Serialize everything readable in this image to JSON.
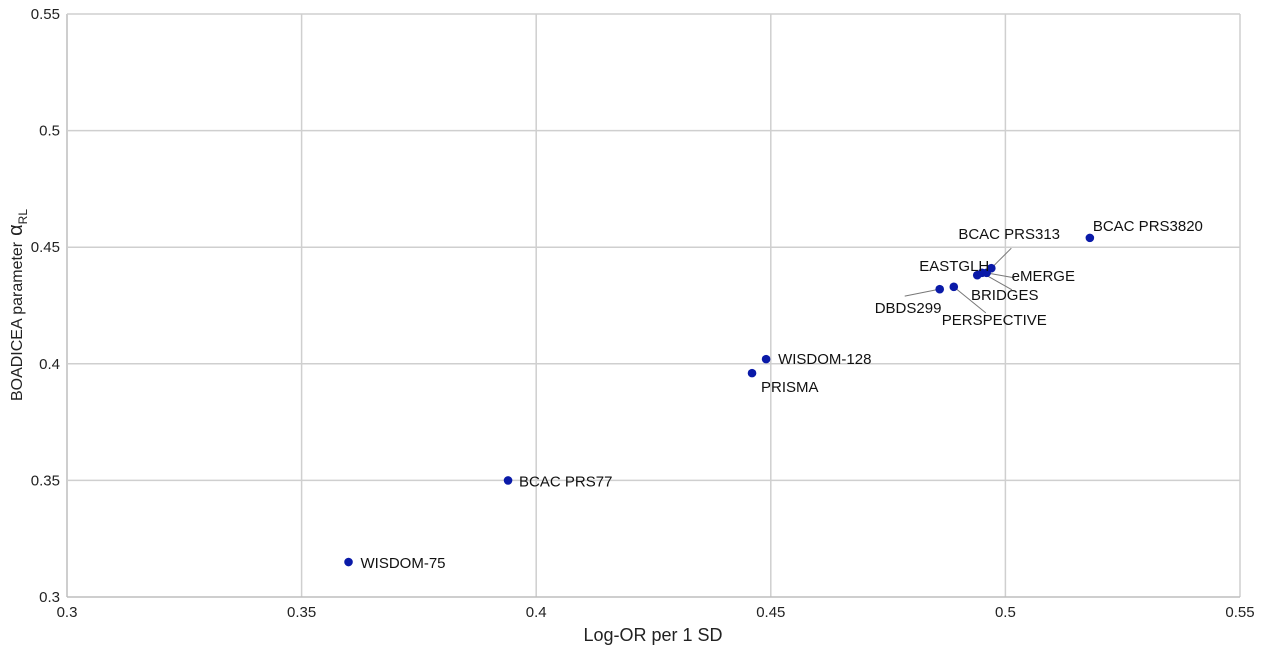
{
  "chart_data": {
    "type": "scatter",
    "title": "",
    "xlabel": "Log-OR per 1 SD",
    "ylabel": "BOADICEA parameter",
    "ylabel_symbol": "α",
    "ylabel_subscript": "RL",
    "xlim": [
      0.3,
      0.55
    ],
    "ylim": [
      0.3,
      0.55
    ],
    "x_ticks": [
      "0.3",
      "0.35",
      "0.4",
      "0.45",
      "0.5",
      "0.55"
    ],
    "y_ticks": [
      "0.3",
      "0.35",
      "0.4",
      "0.45",
      "0.5",
      "0.55"
    ],
    "grid": true,
    "point_color": "#0a1aa8",
    "points": [
      {
        "label": "WISDOM-75",
        "x": 0.36,
        "y": 0.315
      },
      {
        "label": "BCAC PRS77",
        "x": 0.394,
        "y": 0.35
      },
      {
        "label": "PRISMA",
        "x": 0.446,
        "y": 0.396
      },
      {
        "label": "WISDOM-128",
        "x": 0.449,
        "y": 0.402
      },
      {
        "label": "DBDS299",
        "x": 0.486,
        "y": 0.432
      },
      {
        "label": "PERSPECTIVE",
        "x": 0.489,
        "y": 0.433
      },
      {
        "label": "EASTGLH",
        "x": 0.494,
        "y": 0.438
      },
      {
        "label": "BRIDGES",
        "x": 0.495,
        "y": 0.439
      },
      {
        "label": "eMERGE",
        "x": 0.496,
        "y": 0.439
      },
      {
        "label": "BCAC PRS313",
        "x": 0.497,
        "y": 0.441
      },
      {
        "label": "BCAC PRS3820",
        "x": 0.518,
        "y": 0.454
      }
    ]
  }
}
